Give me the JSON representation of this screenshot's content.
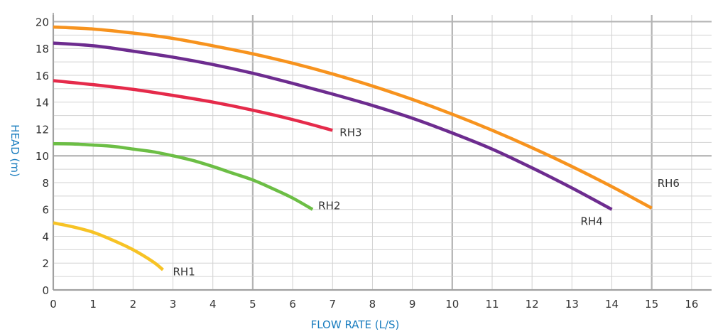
{
  "chart_data": {
    "type": "line",
    "xlabel": "FLOW RATE (L/S)",
    "ylabel": "HEAD (m)",
    "xlim": [
      0,
      16.5
    ],
    "ylim": [
      0,
      20.5
    ],
    "x_ticks": [
      0,
      1,
      2,
      3,
      4,
      5,
      6,
      7,
      8,
      9,
      10,
      11,
      12,
      13,
      14,
      15,
      16
    ],
    "y_ticks": [
      0,
      2,
      4,
      6,
      8,
      10,
      12,
      14,
      16,
      18,
      20
    ],
    "grid": true,
    "legend": "inline labels at line ends",
    "colors": {
      "grid_minor": "#d2d2d2",
      "grid_major": "#b4b4b4",
      "axis": "#999999",
      "axis_title": "#1a7dbf"
    },
    "series": [
      {
        "name": "RH1",
        "color": "#f7c325",
        "x": [
          0,
          0.5,
          1,
          1.5,
          2,
          2.5,
          2.75
        ],
        "y": [
          5.0,
          4.7,
          4.3,
          3.7,
          3.0,
          2.1,
          1.5
        ]
      },
      {
        "name": "RH2",
        "color": "#6cbe45",
        "x": [
          0,
          0.5,
          1,
          1.5,
          2,
          2.5,
          3,
          3.5,
          4,
          4.5,
          5,
          5.5,
          6,
          6.5
        ],
        "y": [
          10.9,
          10.88,
          10.8,
          10.7,
          10.5,
          10.3,
          10.0,
          9.65,
          9.2,
          8.7,
          8.2,
          7.55,
          6.85,
          6.0
        ]
      },
      {
        "name": "RH3",
        "color": "#e52a4a",
        "x": [
          0,
          1,
          2,
          3,
          4,
          5,
          6,
          7
        ],
        "y": [
          15.6,
          15.3,
          14.95,
          14.5,
          14.0,
          13.4,
          12.7,
          11.9
        ]
      },
      {
        "name": "RH4",
        "color": "#6d2c8f",
        "x": [
          0,
          1,
          2,
          3,
          4,
          5,
          6,
          7,
          8,
          9,
          10,
          11,
          12,
          13,
          14
        ],
        "y": [
          18.4,
          18.2,
          17.8,
          17.35,
          16.8,
          16.15,
          15.4,
          14.6,
          13.75,
          12.8,
          11.7,
          10.5,
          9.1,
          7.6,
          6.0
        ]
      },
      {
        "name": "RH6",
        "color": "#f7931e",
        "x": [
          0,
          1,
          2,
          3,
          4,
          5,
          6,
          7,
          8,
          9,
          10,
          11,
          12,
          13,
          14,
          15
        ],
        "y": [
          19.6,
          19.45,
          19.15,
          18.75,
          18.2,
          17.6,
          16.9,
          16.1,
          15.2,
          14.2,
          13.1,
          11.9,
          10.6,
          9.2,
          7.7,
          6.1
        ]
      }
    ]
  }
}
